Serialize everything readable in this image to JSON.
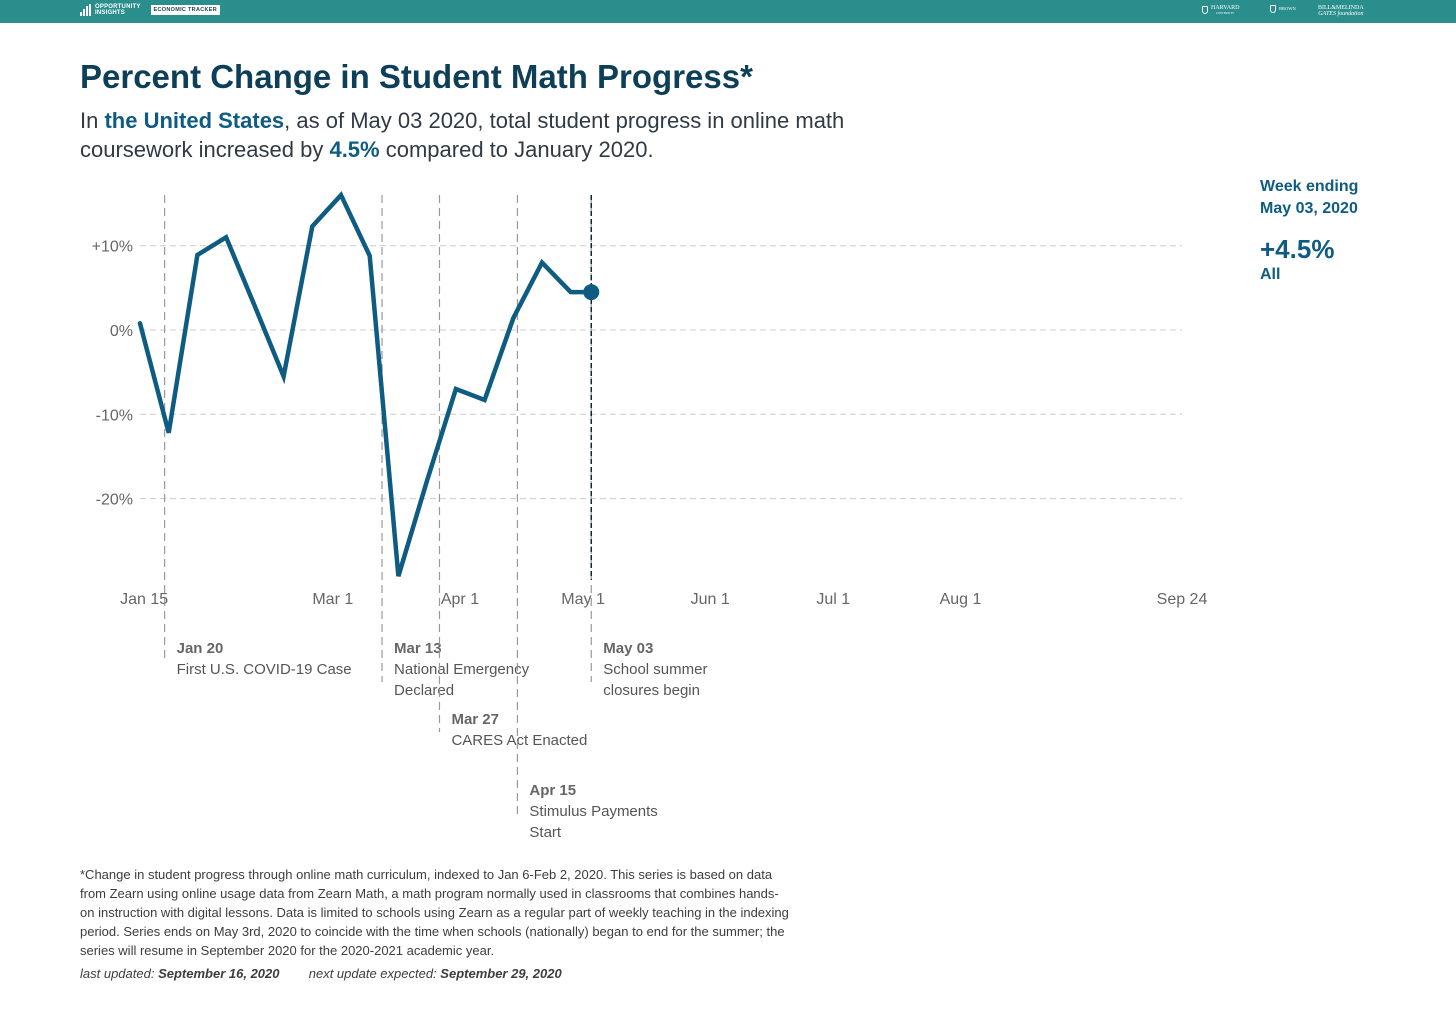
{
  "header": {
    "brand_line1": "OPPORTUNITY",
    "brand_line2": "INSIGHTS",
    "tracker_label": "ECONOMIC TRACKER",
    "partner_1": "HARVARD",
    "partner_1_sub": "UNIVERSITY",
    "partner_2": "BROWN",
    "partner_3_line1": "BILL&MELINDA",
    "partner_3_line2": "GATES foundation",
    "bar_color": "#2a8f8c"
  },
  "title": "Percent Change in Student Math Progress*",
  "subtitle": {
    "p1": "In ",
    "region": "the United States",
    "p2": ", as of May 03 2020, total student progress in online math coursework increased by ",
    "change": "4.5%",
    "p3": " compared to January 2020."
  },
  "side_panel": {
    "week_label_1": "Week ending",
    "week_label_2": "May 03, 2020",
    "value": "+4.5%",
    "group": "All"
  },
  "chart_data": {
    "type": "line",
    "x_type": "date",
    "x": [
      "2020-01-14",
      "2020-01-21",
      "2020-01-28",
      "2020-02-04",
      "2020-02-11",
      "2020-02-18",
      "2020-02-25",
      "2020-03-03",
      "2020-03-10",
      "2020-03-17",
      "2020-03-24",
      "2020-03-31",
      "2020-04-07",
      "2020-04-14",
      "2020-04-21",
      "2020-04-28",
      "2020-05-03"
    ],
    "series": [
      {
        "values": [
          0.8,
          -12.2,
          8.9,
          11.0,
          2.8,
          -5.5,
          12.3,
          16.0,
          8.8,
          -29.2,
          -17.8,
          -7.0,
          -8.3,
          1.4,
          8.0,
          4.5,
          4.5
        ]
      }
    ],
    "xlim": [
      "2020-01-14",
      "2020-09-24"
    ],
    "ylim": [
      -30,
      16
    ],
    "y_ticks": [
      10,
      0,
      -10,
      -20
    ],
    "y_tick_labels": [
      "+10%",
      "0%",
      "-10%",
      "-20%"
    ],
    "x_ticks": [
      "2020-01-15",
      "2020-03-01",
      "2020-04-01",
      "2020-05-01",
      "2020-06-01",
      "2020-07-01",
      "2020-08-01",
      "2020-09-24"
    ],
    "x_tick_labels": [
      "Jan 15",
      "Mar 1",
      "Apr 1",
      "May 1",
      "Jun 1",
      "Jul 1",
      "Aug 1",
      "Sep 24"
    ],
    "grid": "horizontal dashed",
    "line_color": "#0f5c82",
    "highlight_point": {
      "date": "2020-05-03",
      "value": 4.5
    },
    "events": [
      {
        "date": "2020-01-20",
        "title": "Jan 20",
        "lines": [
          "First U.S. COVID-19 Case"
        ]
      },
      {
        "date": "2020-03-13",
        "title": "Mar 13",
        "lines": [
          "National Emergency",
          "Declared"
        ]
      },
      {
        "date": "2020-03-27",
        "title": "Mar 27",
        "lines": [
          "CARES Act Enacted"
        ]
      },
      {
        "date": "2020-04-15",
        "title": "Apr 15",
        "lines": [
          "Stimulus Payments",
          "Start"
        ]
      },
      {
        "date": "2020-05-03",
        "title": "May 03",
        "lines": [
          "School summer",
          "closures begin"
        ]
      }
    ]
  },
  "footnote": "*Change in student progress through online math curriculum, indexed to Jan 6-Feb 2, 2020. This series is based on data from Zearn using online usage data from Zearn Math, a math program normally used in classrooms that combines hands-on instruction with digital lessons. Data is limited to schools using Zearn as a regular part of weekly teaching in the indexing period. Series ends on May 3rd, 2020 to coincide with the time when schools (nationally) began to end for the summer; the series will resume in September 2020 for the 2020-2021 academic year.",
  "updates": {
    "last_label": "last updated:",
    "last_date": "September 16, 2020",
    "next_label": "next update expected:",
    "next_date": "September 29, 2020"
  }
}
